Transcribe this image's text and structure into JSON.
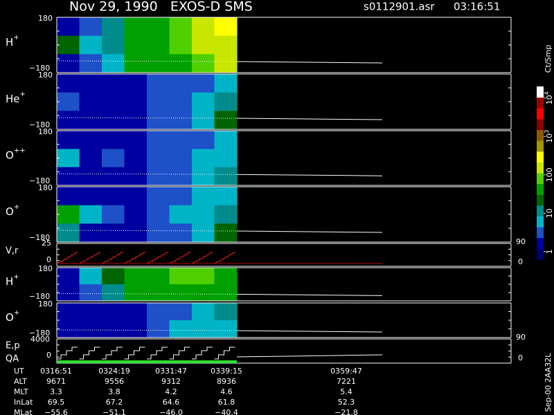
{
  "header": {
    "title": "Nov 29, 1990   EXOS-D SMS",
    "file": "s0112901.asr",
    "time": "03:16:51"
  },
  "panels": [
    {
      "ion": "H",
      "charge": "+",
      "top": "180",
      "bottom": "−180",
      "cells": [
        [
          0.2,
          0.6,
          1.0,
          1.6,
          1.7,
          1.8,
          2.2,
          2.4
        ],
        [
          1.4,
          0.7,
          1.1,
          1.6,
          1.6,
          1.8,
          2.2,
          2.3
        ],
        [
          0.3,
          0.5,
          0.9,
          1.5,
          1.6,
          1.7,
          2.0,
          2.1
        ]
      ]
    },
    {
      "ion": "He",
      "charge": "+",
      "top": "180",
      "bottom": "−180",
      "cells": [
        [
          0.1,
          0.1,
          0.1,
          0.2,
          0.4,
          0.5,
          0.6,
          0.8
        ],
        [
          0.6,
          0.3,
          0.3,
          0.2,
          0.5,
          0.6,
          0.8,
          1.1
        ],
        [
          0.2,
          0.1,
          0.2,
          0.2,
          0.4,
          0.6,
          0.7,
          1.3
        ]
      ]
    },
    {
      "ion": "O",
      "charge": "++",
      "top": "180",
      "bottom": "−180",
      "cells": [
        [
          0.1,
          0.1,
          0.1,
          0.2,
          0.4,
          0.5,
          0.6,
          0.8
        ],
        [
          0.7,
          0.3,
          0.4,
          0.2,
          0.5,
          0.6,
          0.8,
          0.9
        ],
        [
          0.3,
          0.1,
          0.2,
          0.3,
          0.4,
          0.6,
          0.8,
          1.0
        ]
      ]
    },
    {
      "ion": "O",
      "charge": "+",
      "top": "180",
      "bottom": "−180",
      "cells": [
        [
          0.2,
          0.1,
          0.1,
          0.2,
          0.4,
          0.6,
          0.7,
          0.9
        ],
        [
          1.5,
          0.7,
          0.4,
          0.3,
          0.6,
          0.7,
          0.9,
          1.2
        ],
        [
          1.2,
          0.3,
          0.2,
          0.3,
          0.5,
          0.6,
          0.9,
          1.3
        ]
      ]
    }
  ],
  "vr": {
    "label": "V,r",
    "top": "25",
    "bottom": "0",
    "right_top": "90",
    "right_bottom": "0"
  },
  "pitch": [
    {
      "ion": "H",
      "charge": "+",
      "top": "180",
      "bottom": "−180",
      "cells": [
        [
          0.2,
          0.7,
          1.4,
          1.6,
          1.7,
          1.8,
          1.8,
          1.7
        ],
        [
          0.2,
          0.6,
          1.0,
          1.5,
          1.5,
          1.6,
          1.6,
          1.5
        ]
      ]
    },
    {
      "ion": "O",
      "charge": "+",
      "top": "180",
      "bottom": "−180",
      "cells": [
        [
          0.1,
          0.1,
          0.2,
          0.3,
          0.5,
          0.6,
          0.8,
          1.0
        ],
        [
          0.1,
          0.1,
          0.2,
          0.3,
          0.5,
          0.7,
          0.8,
          0.9
        ]
      ]
    }
  ],
  "ep": {
    "label": "E,p",
    "qa": "QA",
    "top": "4000",
    "bottom": "0",
    "right_top": "90",
    "right_bottom": "0"
  },
  "table": {
    "rows": [
      {
        "name": "UT",
        "values": [
          "0316:51",
          "0324:19",
          "0331:47",
          "0339:15",
          "0359:47"
        ]
      },
      {
        "name": "ALT",
        "values": [
          "9671",
          "9556",
          "9312",
          "8936",
          "7221"
        ]
      },
      {
        "name": "MLT",
        "values": [
          "3.3",
          "3.8",
          "4.2",
          "4.6",
          "5.4"
        ]
      },
      {
        "name": "InLat",
        "values": [
          "69.5",
          "67.2",
          "64.6",
          "61.8",
          "52.3"
        ]
      },
      {
        "name": "MLat",
        "values": [
          "−55.6",
          "−51.1",
          "−46.0",
          "−40.4",
          "−21.8"
        ]
      }
    ]
  },
  "colorbar": {
    "unit": "Ct/Smp",
    "lim": [
      -0.2,
      4.3
    ],
    "colors": [
      "#00006e",
      "#0000a0",
      "#1e50c8",
      "#00b4c8",
      "#008c8c",
      "#006400",
      "#00a000",
      "#50d000",
      "#c8e600",
      "#ffff00",
      "#a09600",
      "#8c5a00",
      "#8b0000",
      "#ff0000",
      "#a00000",
      "#ffffff"
    ],
    "ticks": [
      {
        "value": 4,
        "label": "10",
        "sup": "4"
      },
      {
        "value": 3,
        "label": "10",
        "sup": "3"
      },
      {
        "value": 2,
        "label": "100"
      },
      {
        "value": 1,
        "label": "10"
      },
      {
        "value": 0,
        "label": "1"
      }
    ]
  },
  "footer": "Sep-00 2AA32L"
}
